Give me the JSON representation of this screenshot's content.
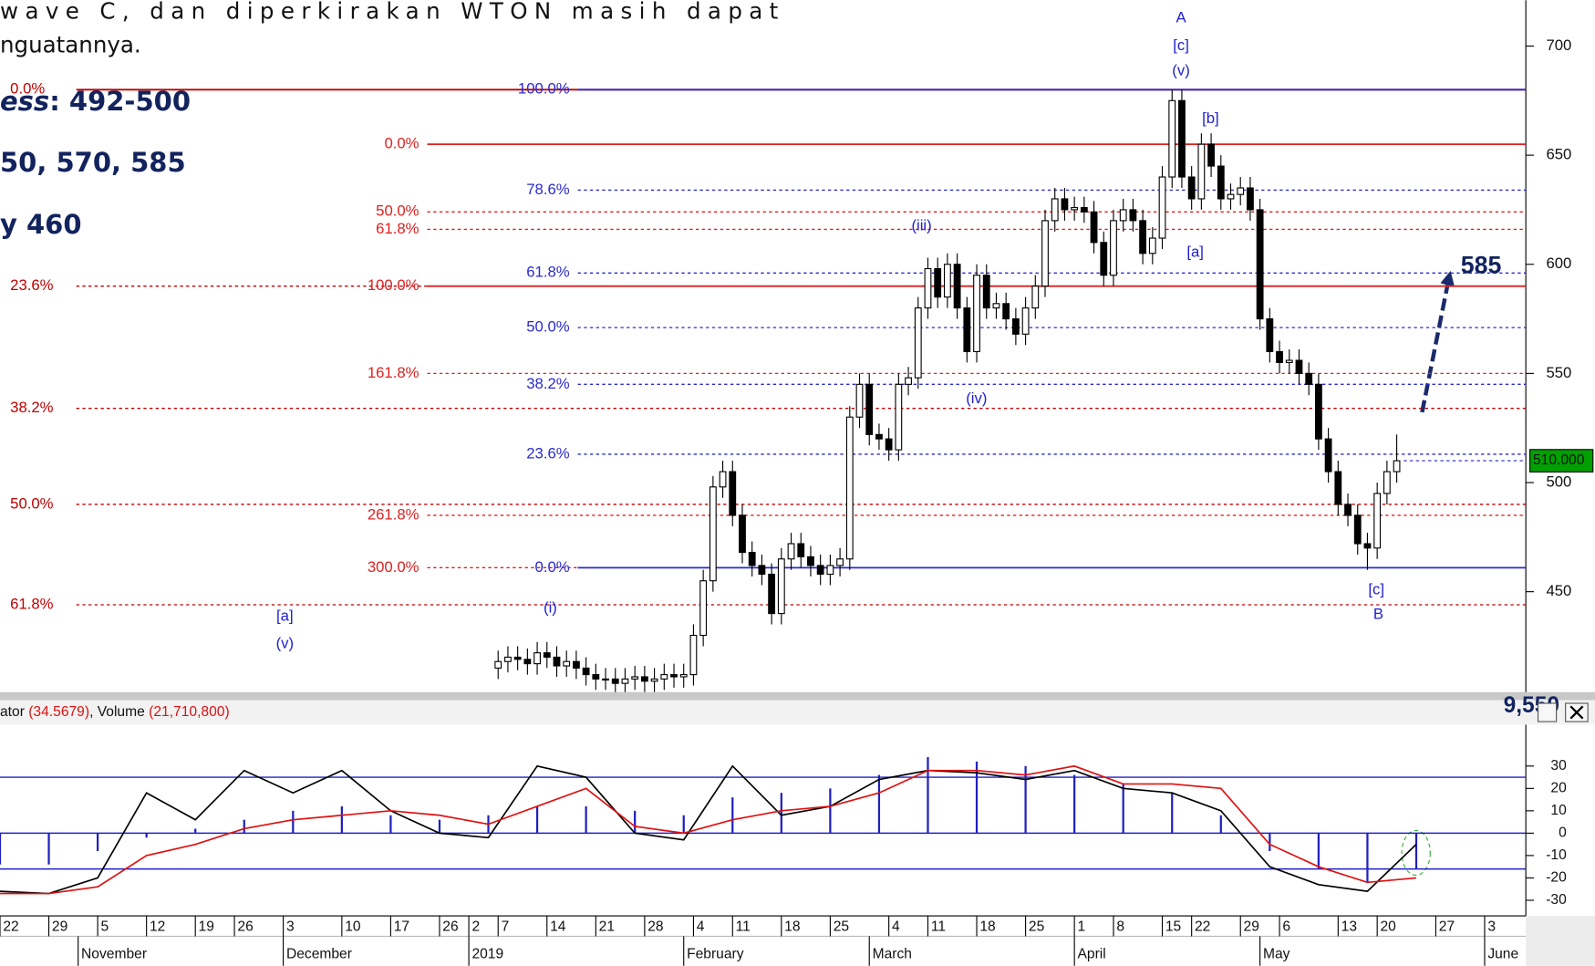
{
  "chart_data": [
    {
      "type": "candlestick",
      "notes": [
        "wave C, dan diperkirakan WTON masih dapat",
        "nguatannya."
      ],
      "targets": [
        [
          "ess",
          ": 492-500"
        ],
        [
          "50, 570, 585"
        ],
        [
          "y 460"
        ]
      ],
      "xlim": [
        0,
        163.3
      ],
      "ylim": [
        404,
        721
      ],
      "yticks": [
        450,
        500,
        550,
        600,
        650,
        700
      ],
      "last_price": {
        "value": 510,
        "label": "510.000"
      },
      "target_label": "585",
      "corner_label": "9,550",
      "up_color": "#ffffff",
      "down_color": "#000000",
      "fib_groups": [
        {
          "color": "#c00000",
          "levels": [
            {
              "label": "0.0%",
              "value": 680,
              "style": "solid"
            },
            {
              "label": "23.6%",
              "value": 590,
              "style": "dashed"
            },
            {
              "label": "38.2%",
              "value": 534,
              "style": "dashed"
            },
            {
              "label": "50.0%",
              "value": 490,
              "style": "dashed"
            },
            {
              "label": "61.8%",
              "value": 444,
              "style": "dashed"
            }
          ]
        },
        {
          "color": "#e02020",
          "levels": [
            {
              "label": "0.0%",
              "value": 655,
              "style": "solid"
            },
            {
              "label": "50.0%",
              "value": 624,
              "style": "dashed"
            },
            {
              "label": "61.8%",
              "value": 616,
              "style": "dashed"
            },
            {
              "label": "100.0%",
              "value": 590,
              "style": "solid"
            },
            {
              "label": "161.8%",
              "value": 550,
              "style": "dashed"
            },
            {
              "label": "261.8%",
              "value": 485,
              "style": "dashed"
            },
            {
              "label": "300.0%",
              "value": 461,
              "style": "dashed"
            }
          ]
        },
        {
          "color": "#2a2ad0",
          "levels": [
            {
              "label": "100.0%",
              "value": 680,
              "style": "solid"
            },
            {
              "label": "78.6%",
              "value": 634,
              "style": "dashed"
            },
            {
              "label": "61.8%",
              "value": 596,
              "style": "dashed"
            },
            {
              "label": "50.0%",
              "value": 571,
              "style": "dashed"
            },
            {
              "label": "38.2%",
              "value": 545,
              "style": "dashed"
            },
            {
              "label": "23.6%",
              "value": 513,
              "style": "dashed"
            },
            {
              "label": "0.0%",
              "value": 461,
              "style": "solid"
            }
          ]
        }
      ],
      "wave_labels": [
        "A",
        "[c]",
        "(v)",
        "[b]",
        "[a]",
        "(iii)",
        "(iv)",
        "[c]",
        "B",
        "[a]",
        "(v)",
        "(i)"
      ],
      "candles": {
        "x": [
          51,
          52,
          53,
          54,
          55,
          56,
          57,
          58,
          59,
          60,
          61,
          62,
          63,
          64,
          65,
          66,
          67,
          68,
          69,
          70,
          71,
          72,
          73,
          74,
          75,
          76,
          77,
          78,
          79,
          80,
          81,
          82,
          83,
          84,
          85,
          86,
          87,
          88,
          89,
          90,
          91,
          92,
          93,
          94,
          95,
          96,
          97,
          98,
          99,
          100,
          101,
          102,
          103,
          104,
          105,
          106,
          107,
          108,
          109,
          110,
          111,
          112,
          113,
          114,
          115,
          116,
          117,
          118,
          119,
          120,
          121,
          122,
          123,
          124,
          125,
          126,
          127,
          128,
          129,
          130,
          131,
          132,
          133,
          134,
          135,
          136,
          137,
          138,
          139,
          140,
          141,
          142,
          143
        ],
        "open": [
          415,
          418,
          420,
          419,
          417,
          422,
          420,
          416,
          418,
          415,
          412,
          410,
          410,
          408,
          410,
          411,
          409,
          410,
          412,
          411,
          412,
          430,
          455,
          498,
          505,
          485,
          468,
          462,
          458,
          440,
          465,
          472,
          466,
          462,
          458,
          462,
          465,
          530,
          545,
          522,
          520,
          515,
          545,
          548,
          580,
          598,
          585,
          600,
          580,
          560,
          595,
          580,
          582,
          575,
          568,
          580,
          590,
          620,
          630,
          625,
          626,
          624,
          610,
          595,
          620,
          625,
          620,
          605,
          612,
          640,
          675,
          640,
          630,
          655,
          645,
          630,
          632,
          635,
          625,
          575,
          560,
          555,
          556,
          550,
          545,
          520,
          505,
          490,
          485,
          472,
          470,
          495,
          505
        ],
        "close": [
          418,
          420,
          419,
          417,
          422,
          420,
          416,
          418,
          415,
          412,
          410,
          410,
          408,
          410,
          411,
          409,
          410,
          412,
          411,
          412,
          430,
          455,
          498,
          505,
          485,
          468,
          462,
          458,
          440,
          465,
          472,
          466,
          462,
          458,
          462,
          465,
          530,
          545,
          522,
          520,
          515,
          545,
          548,
          580,
          598,
          585,
          600,
          580,
          560,
          595,
          580,
          582,
          575,
          568,
          580,
          590,
          620,
          630,
          625,
          626,
          624,
          610,
          595,
          620,
          625,
          620,
          605,
          612,
          640,
          675,
          640,
          630,
          655,
          645,
          630,
          632,
          635,
          625,
          575,
          560,
          555,
          556,
          550,
          545,
          520,
          505,
          490,
          485,
          472,
          470,
          495,
          505,
          510
        ],
        "high": [
          423,
          425,
          425,
          424,
          427,
          427,
          425,
          423,
          423,
          420,
          417,
          415,
          415,
          415,
          416,
          416,
          415,
          417,
          417,
          417,
          435,
          460,
          503,
          510,
          510,
          490,
          473,
          467,
          463,
          470,
          477,
          477,
          471,
          467,
          467,
          470,
          535,
          550,
          550,
          527,
          525,
          550,
          553,
          585,
          603,
          603,
          605,
          605,
          585,
          600,
          600,
          587,
          587,
          580,
          585,
          595,
          625,
          635,
          635,
          631,
          631,
          629,
          615,
          625,
          630,
          630,
          625,
          617,
          645,
          680,
          680,
          645,
          660,
          660,
          650,
          637,
          640,
          640,
          630,
          580,
          565,
          561,
          561,
          555,
          550,
          525,
          510,
          495,
          490,
          477,
          500,
          510,
          522
        ],
        "low": [
          410,
          413,
          414,
          412,
          412,
          415,
          411,
          411,
          410,
          407,
          405,
          405,
          403,
          403,
          405,
          404,
          404,
          405,
          406,
          406,
          407,
          425,
          450,
          493,
          480,
          463,
          457,
          453,
          435,
          435,
          460,
          461,
          457,
          453,
          453,
          457,
          460,
          525,
          517,
          515,
          510,
          510,
          540,
          543,
          575,
          580,
          580,
          575,
          555,
          555,
          575,
          575,
          570,
          563,
          563,
          575,
          585,
          615,
          620,
          620,
          619,
          605,
          590,
          590,
          615,
          615,
          600,
          600,
          607,
          635,
          635,
          625,
          625,
          640,
          625,
          625,
          627,
          620,
          570,
          555,
          550,
          550,
          545,
          540,
          515,
          500,
          485,
          480,
          467,
          460,
          465,
          490,
          500
        ]
      }
    },
    {
      "type": "line",
      "header": [
        "ator ",
        "(34.5679)",
        ", Volume ",
        "(21,710,800)"
      ],
      "xlim": [
        0,
        163.3
      ],
      "ylim": [
        -37,
        48.5
      ],
      "yticks": [
        30,
        20,
        10,
        0,
        -10,
        -20,
        -30
      ],
      "hlines": [
        25,
        0,
        -16
      ],
      "x": [
        0,
        5,
        10,
        15,
        20,
        25,
        30,
        35,
        40,
        45,
        50,
        55,
        60,
        65,
        70,
        75,
        80,
        85,
        90,
        95,
        100,
        105,
        110,
        115,
        120,
        125,
        130,
        135,
        140,
        145
      ],
      "histogram": {
        "color": "#2020c0",
        "values": [
          -14,
          -14,
          -8,
          -2,
          2,
          6,
          10,
          12,
          8,
          6,
          8,
          12,
          12,
          10,
          8,
          16,
          18,
          20,
          26,
          34,
          32,
          30,
          26,
          22,
          18,
          8,
          -8,
          -16,
          -22,
          -16
        ]
      },
      "series": [
        {
          "color": "#000000",
          "values": [
            -26,
            -27,
            -20,
            18,
            6,
            28,
            18,
            28,
            10,
            0,
            -2,
            30,
            25,
            0,
            -3,
            30,
            8,
            12,
            24,
            28,
            27,
            24,
            28,
            20,
            18,
            10,
            -15,
            -23,
            -26,
            -5
          ]
        },
        {
          "color": "#e01010",
          "values": [
            -27,
            -27,
            -24,
            -10,
            -5,
            2,
            6,
            8,
            10,
            8,
            4,
            12,
            20,
            3,
            0,
            6,
            10,
            12,
            18,
            28,
            28,
            26,
            30,
            22,
            22,
            20,
            -5,
            -15,
            -22,
            -20
          ]
        }
      ],
      "xticks": [
        {
          "value": 0,
          "label": "22"
        },
        {
          "value": 5,
          "label": "29"
        },
        {
          "value": 10,
          "label": "5"
        },
        {
          "value": 15,
          "label": "12"
        },
        {
          "value": 20,
          "label": "19"
        },
        {
          "value": 24,
          "label": "26"
        },
        {
          "value": 29,
          "label": "3"
        },
        {
          "value": 35,
          "label": "10"
        },
        {
          "value": 40,
          "label": "17"
        },
        {
          "value": 45,
          "label": "26"
        },
        {
          "value": 48,
          "label": "2"
        },
        {
          "value": 51,
          "label": "7"
        },
        {
          "value": 56,
          "label": "14"
        },
        {
          "value": 61,
          "label": "21"
        },
        {
          "value": 66,
          "label": "28"
        },
        {
          "value": 71,
          "label": "4"
        },
        {
          "value": 75,
          "label": "11"
        },
        {
          "value": 80,
          "label": "18"
        },
        {
          "value": 85,
          "label": "25"
        },
        {
          "value": 91,
          "label": "4"
        },
        {
          "value": 95,
          "label": "11"
        },
        {
          "value": 100,
          "label": "18"
        },
        {
          "value": 105,
          "label": "25"
        },
        {
          "value": 110,
          "label": "1"
        },
        {
          "value": 114,
          "label": "8"
        },
        {
          "value": 119,
          "label": "15"
        },
        {
          "value": 122,
          "label": "22"
        },
        {
          "value": 127,
          "label": "29"
        },
        {
          "value": 131,
          "label": "6"
        },
        {
          "value": 137,
          "label": "13"
        },
        {
          "value": 141,
          "label": "20"
        },
        {
          "value": 147,
          "label": "27"
        },
        {
          "value": 152,
          "label": "3"
        }
      ],
      "month_ticks": [
        {
          "value": 8,
          "label": "November"
        },
        {
          "value": 29,
          "label": "December"
        },
        {
          "value": 48,
          "label": "2019"
        },
        {
          "value": 70,
          "label": "February"
        },
        {
          "value": 89,
          "label": "March"
        },
        {
          "value": 110,
          "label": "April"
        },
        {
          "value": 129,
          "label": "May"
        },
        {
          "value": 152,
          "label": "June"
        }
      ]
    }
  ]
}
